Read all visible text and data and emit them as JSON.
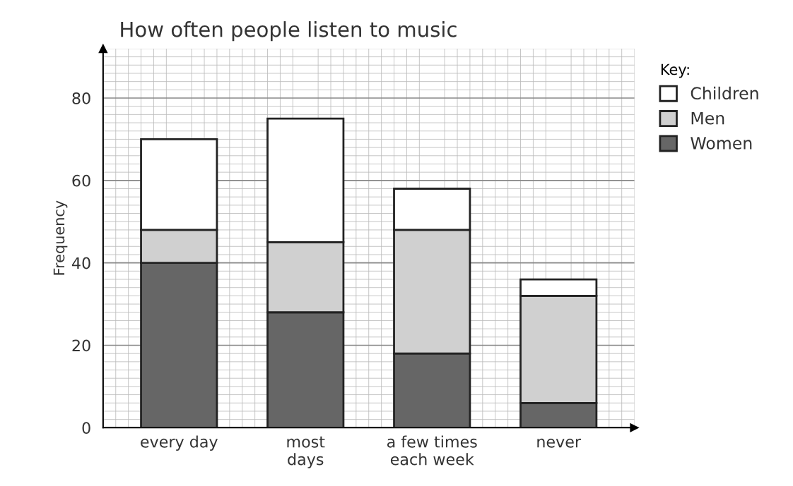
{
  "chart_data": {
    "type": "bar",
    "title": "How often people listen to music",
    "ylabel": "Frequency",
    "legend_title": "Key:",
    "categories": [
      "every day",
      "most\ndays",
      "a few times\neach week",
      "never"
    ],
    "stacked": true,
    "series": [
      {
        "name": "Women",
        "color": "#666666",
        "values": [
          40,
          28,
          18,
          6
        ]
      },
      {
        "name": "Men",
        "color": "#d0d0d0",
        "values": [
          8,
          17,
          30,
          26
        ]
      },
      {
        "name": "Children",
        "color": "#ffffff",
        "values": [
          22,
          30,
          10,
          4
        ]
      }
    ],
    "ylim": [
      0,
      92
    ],
    "yticks": [
      0,
      20,
      40,
      60,
      80
    ],
    "grid": true,
    "legend": "right"
  }
}
